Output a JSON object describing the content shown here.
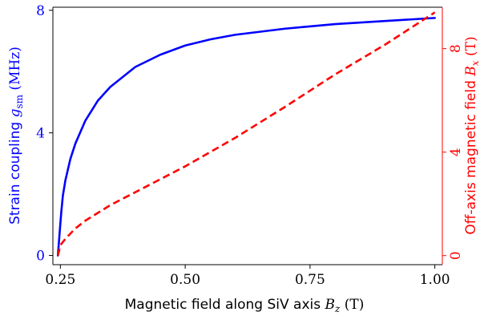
{
  "chart_data": {
    "type": "line",
    "x_axis": {
      "label": "Magnetic field along SiV axis B_z (T)",
      "range": [
        0.235,
        1.015
      ],
      "ticks": [
        0.25,
        0.5,
        0.75,
        1.0
      ],
      "tick_labels": [
        "0.25",
        "0.50",
        "0.75",
        "1.00"
      ]
    },
    "y_axis_left": {
      "label": "Strain coupling g_sm (MHz)",
      "range": [
        -0.3,
        8.1
      ],
      "ticks": [
        0,
        4,
        8
      ],
      "tick_labels": [
        "0",
        "4",
        "8"
      ],
      "color": "#0000ff"
    },
    "y_axis_right": {
      "label": "Off-axis magnetic field B_x (T)",
      "range": [
        -0.35,
        9.6
      ],
      "ticks": [
        0,
        4,
        8
      ],
      "tick_labels": [
        "0",
        "4",
        "8"
      ],
      "color": "#ff0000"
    },
    "series": [
      {
        "axis": "left",
        "style": "solid",
        "color": "#0000ff",
        "x": [
          0.245,
          0.25,
          0.252,
          0.255,
          0.26,
          0.27,
          0.28,
          0.3,
          0.325,
          0.35,
          0.4,
          0.45,
          0.5,
          0.55,
          0.6,
          0.7,
          0.8,
          0.9,
          1.0
        ],
        "y": [
          0.0,
          1.05,
          1.45,
          1.95,
          2.45,
          3.15,
          3.65,
          4.4,
          5.05,
          5.5,
          6.15,
          6.55,
          6.85,
          7.05,
          7.2,
          7.4,
          7.55,
          7.65,
          7.75
        ]
      },
      {
        "axis": "right",
        "style": "dashed",
        "color": "#ff0000",
        "x": [
          0.245,
          0.25,
          0.26,
          0.28,
          0.3,
          0.35,
          0.4,
          0.5,
          0.6,
          0.7,
          0.8,
          0.9,
          1.0
        ],
        "y": [
          0.0,
          0.4,
          0.65,
          1.05,
          1.35,
          1.95,
          2.45,
          3.45,
          4.55,
          5.75,
          7.0,
          8.15,
          9.4
        ]
      }
    ]
  }
}
